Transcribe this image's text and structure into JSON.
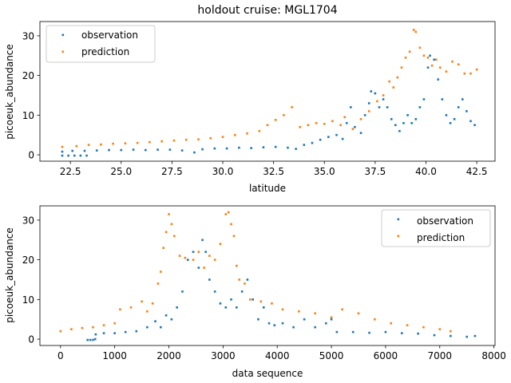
{
  "chart_data": [
    {
      "type": "scatter",
      "title": "holdout cruise: MGL1704",
      "xlabel": "latitude",
      "ylabel": "picoeuk_abundance",
      "xlim": [
        21.0,
        43.4
      ],
      "ylim": [
        -1.6,
        33.6
      ],
      "xticks": [
        22.5,
        25.0,
        27.5,
        30.0,
        32.5,
        35.0,
        37.5,
        40.0,
        42.5
      ],
      "xtick_labels": [
        "22.5",
        "25.0",
        "27.5",
        "30.0",
        "32.5",
        "35.0",
        "37.5",
        "40.0",
        "42.5"
      ],
      "yticks": [
        0,
        10,
        20,
        30
      ],
      "ytick_labels": [
        "0",
        "10",
        "20",
        "30"
      ],
      "grid": false,
      "legend_position": "top-left",
      "series": [
        {
          "name": "observation",
          "color": "#1f77b4",
          "points": [
            [
              22.1,
              -0.2
            ],
            [
              22.4,
              -0.2
            ],
            [
              22.7,
              -0.2
            ],
            [
              23.0,
              -0.2
            ],
            [
              23.3,
              -0.2
            ],
            [
              22.1,
              0.8
            ],
            [
              22.6,
              1.0
            ],
            [
              23.2,
              1.0
            ],
            [
              23.8,
              1.1
            ],
            [
              24.4,
              1.2
            ],
            [
              25.0,
              1.2
            ],
            [
              25.6,
              1.3
            ],
            [
              26.2,
              1.2
            ],
            [
              26.8,
              1.3
            ],
            [
              27.4,
              1.3
            ],
            [
              28.0,
              1.1
            ],
            [
              28.6,
              0.6
            ],
            [
              29.0,
              1.4
            ],
            [
              29.6,
              1.6
            ],
            [
              30.2,
              1.6
            ],
            [
              30.8,
              1.8
            ],
            [
              31.4,
              1.7
            ],
            [
              32.0,
              1.9
            ],
            [
              32.6,
              2.0
            ],
            [
              33.2,
              1.8
            ],
            [
              33.6,
              1.5
            ],
            [
              34.0,
              2.5
            ],
            [
              34.4,
              3.0
            ],
            [
              34.8,
              3.8
            ],
            [
              35.2,
              4.5
            ],
            [
              35.6,
              5.0
            ],
            [
              35.9,
              4.0
            ],
            [
              36.1,
              8.0
            ],
            [
              36.3,
              12.0
            ],
            [
              36.5,
              7.0
            ],
            [
              36.8,
              5.5
            ],
            [
              37.0,
              10.0
            ],
            [
              37.2,
              13.0
            ],
            [
              37.3,
              16.0
            ],
            [
              37.5,
              15.5
            ],
            [
              37.7,
              12.0
            ],
            [
              37.9,
              14.0
            ],
            [
              38.1,
              12.0
            ],
            [
              38.3,
              9.0
            ],
            [
              38.5,
              7.5
            ],
            [
              38.7,
              6.0
            ],
            [
              38.9,
              8.0
            ],
            [
              39.1,
              10.0
            ],
            [
              39.3,
              8.0
            ],
            [
              39.5,
              9.0
            ],
            [
              39.7,
              12.0
            ],
            [
              39.9,
              14.0
            ],
            [
              40.1,
              22.0
            ],
            [
              40.2,
              25.0
            ],
            [
              40.4,
              24.0
            ],
            [
              40.6,
              19.0
            ],
            [
              40.8,
              14.0
            ],
            [
              41.0,
              10.0
            ],
            [
              41.2,
              8.0
            ],
            [
              41.4,
              9.0
            ],
            [
              41.6,
              12.0
            ],
            [
              41.8,
              14.0
            ],
            [
              42.0,
              11.0
            ],
            [
              42.2,
              8.5
            ],
            [
              42.4,
              7.5
            ]
          ]
        },
        {
          "name": "prediction",
          "color": "#ff7f0e",
          "points": [
            [
              22.1,
              2.0
            ],
            [
              22.8,
              2.2
            ],
            [
              23.4,
              2.5
            ],
            [
              24.0,
              2.6
            ],
            [
              24.6,
              2.8
            ],
            [
              25.2,
              2.9
            ],
            [
              25.8,
              3.0
            ],
            [
              26.4,
              3.2
            ],
            [
              27.0,
              3.4
            ],
            [
              27.6,
              3.6
            ],
            [
              28.2,
              3.8
            ],
            [
              28.8,
              3.9
            ],
            [
              29.4,
              4.2
            ],
            [
              30.0,
              4.5
            ],
            [
              30.6,
              5.0
            ],
            [
              31.2,
              5.4
            ],
            [
              31.8,
              6.0
            ],
            [
              32.2,
              7.5
            ],
            [
              32.6,
              8.8
            ],
            [
              33.0,
              10.0
            ],
            [
              33.4,
              12.0
            ],
            [
              33.8,
              7.0
            ],
            [
              34.2,
              7.5
            ],
            [
              34.6,
              8.0
            ],
            [
              35.0,
              7.8
            ],
            [
              35.4,
              8.5
            ],
            [
              35.8,
              7.5
            ],
            [
              36.0,
              9.5
            ],
            [
              36.4,
              6.5
            ],
            [
              36.8,
              9.0
            ],
            [
              37.2,
              11.0
            ],
            [
              37.6,
              13.5
            ],
            [
              37.9,
              15.0
            ],
            [
              38.2,
              18.5
            ],
            [
              38.4,
              17.0
            ],
            [
              38.6,
              19.5
            ],
            [
              38.8,
              22.0
            ],
            [
              39.0,
              24.5
            ],
            [
              39.2,
              26.0
            ],
            [
              39.4,
              31.5
            ],
            [
              39.5,
              31.0
            ],
            [
              39.7,
              27.0
            ],
            [
              39.9,
              25.0
            ],
            [
              40.1,
              24.5
            ],
            [
              40.3,
              22.5
            ],
            [
              40.5,
              24.0
            ],
            [
              40.7,
              22.0
            ],
            [
              41.0,
              21.0
            ],
            [
              41.3,
              23.5
            ],
            [
              41.6,
              22.8
            ],
            [
              41.9,
              20.5
            ],
            [
              42.2,
              20.5
            ],
            [
              42.5,
              21.5
            ]
          ]
        }
      ]
    },
    {
      "type": "scatter",
      "title": "",
      "xlabel": "data sequence",
      "ylabel": "picoeuk_abundance",
      "xlim": [
        -380,
        8020
      ],
      "ylim": [
        -1.6,
        33.6
      ],
      "xticks": [
        0,
        1000,
        2000,
        3000,
        4000,
        5000,
        6000,
        7000,
        8000
      ],
      "xtick_labels": [
        "0",
        "1000",
        "2000",
        "3000",
        "4000",
        "5000",
        "6000",
        "7000",
        "8000"
      ],
      "yticks": [
        0,
        10,
        20,
        30
      ],
      "ytick_labels": [
        "0",
        "10",
        "20",
        "30"
      ],
      "grid": false,
      "legend_position": "top-right",
      "series": [
        {
          "name": "observation",
          "color": "#1f77b4",
          "points": [
            [
              500,
              -0.2
            ],
            [
              550,
              -0.2
            ],
            [
              600,
              -0.2
            ],
            [
              640,
              0.0
            ],
            [
              650,
              1.2
            ],
            [
              800,
              1.5
            ],
            [
              1000,
              1.5
            ],
            [
              1200,
              1.8
            ],
            [
              1400,
              2.0
            ],
            [
              1600,
              3.0
            ],
            [
              1750,
              4.5
            ],
            [
              1850,
              3.0
            ],
            [
              1950,
              6.0
            ],
            [
              2050,
              5.0
            ],
            [
              2150,
              8.0
            ],
            [
              2250,
              12.0
            ],
            [
              2350,
              20.0
            ],
            [
              2450,
              22.0
            ],
            [
              2550,
              18.0
            ],
            [
              2620,
              25.0
            ],
            [
              2680,
              22.0
            ],
            [
              2750,
              15.0
            ],
            [
              2850,
              12.0
            ],
            [
              2950,
              9.0
            ],
            [
              3050,
              8.0
            ],
            [
              3150,
              10.0
            ],
            [
              3250,
              8.0
            ],
            [
              3350,
              12.0
            ],
            [
              3450,
              15.0
            ],
            [
              3550,
              10.0
            ],
            [
              3650,
              5.0
            ],
            [
              3750,
              8.0
            ],
            [
              3850,
              4.0
            ],
            [
              3950,
              3.5
            ],
            [
              4100,
              4.0
            ],
            [
              4300,
              3.0
            ],
            [
              4500,
              5.0
            ],
            [
              4700,
              3.0
            ],
            [
              4900,
              4.0
            ],
            [
              5000,
              5.0
            ],
            [
              5100,
              1.8
            ],
            [
              5400,
              1.8
            ],
            [
              5700,
              1.6
            ],
            [
              6000,
              1.8
            ],
            [
              6300,
              1.5
            ],
            [
              6600,
              1.4
            ],
            [
              6900,
              1.0
            ],
            [
              7200,
              0.8
            ],
            [
              7500,
              0.6
            ],
            [
              7650,
              0.8
            ]
          ]
        },
        {
          "name": "prediction",
          "color": "#ff7f0e",
          "points": [
            [
              0,
              2.0
            ],
            [
              200,
              2.5
            ],
            [
              400,
              2.8
            ],
            [
              600,
              3.0
            ],
            [
              800,
              3.5
            ],
            [
              1000,
              4.0
            ],
            [
              1100,
              7.5
            ],
            [
              1300,
              8.0
            ],
            [
              1500,
              9.5
            ],
            [
              1600,
              7.0
            ],
            [
              1700,
              9.0
            ],
            [
              1800,
              14.0
            ],
            [
              1850,
              17.0
            ],
            [
              1900,
              23.0
            ],
            [
              1950,
              27.0
            ],
            [
              2000,
              31.5
            ],
            [
              2050,
              29.0
            ],
            [
              2100,
              26.0
            ],
            [
              2200,
              21.0
            ],
            [
              2300,
              20.5
            ],
            [
              2450,
              20.0
            ],
            [
              2550,
              22.0
            ],
            [
              2650,
              18.0
            ],
            [
              2750,
              21.0
            ],
            [
              2850,
              20.0
            ],
            [
              2950,
              24.0
            ],
            [
              3050,
              31.5
            ],
            [
              3100,
              32.0
            ],
            [
              3150,
              29.0
            ],
            [
              3200,
              26.0
            ],
            [
              3250,
              18.5
            ],
            [
              3300,
              15.0
            ],
            [
              3400,
              14.0
            ],
            [
              3500,
              10.0
            ],
            [
              3700,
              9.5
            ],
            [
              3900,
              9.0
            ],
            [
              4100,
              7.5
            ],
            [
              4400,
              7.0
            ],
            [
              4700,
              6.5
            ],
            [
              5000,
              5.5
            ],
            [
              5200,
              7.5
            ],
            [
              5500,
              6.5
            ],
            [
              5800,
              5.0
            ],
            [
              6100,
              4.0
            ],
            [
              6400,
              3.5
            ],
            [
              6700,
              3.0
            ],
            [
              7000,
              2.5
            ],
            [
              7200,
              2.0
            ]
          ]
        }
      ]
    }
  ]
}
